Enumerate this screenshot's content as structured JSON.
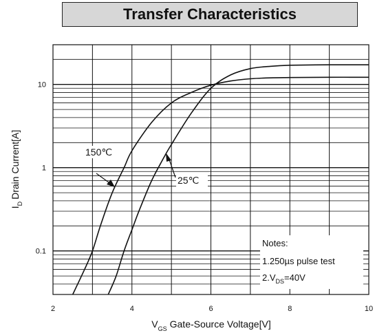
{
  "chart_data": {
    "type": "line",
    "title": "Transfer Characteristics",
    "xlabel": "Gate-Source Voltage[V]",
    "xlabel_symbol": "V",
    "xlabel_subscript": "GS",
    "ylabel": "Drain Current[A]",
    "ylabel_symbol": "I",
    "ylabel_subscript": "D",
    "x_scale": "linear",
    "y_scale": "log",
    "xlim": [
      2,
      10
    ],
    "ylim": [
      0.03,
      30
    ],
    "x_ticks": [
      2,
      4,
      6,
      8,
      10
    ],
    "x_tick_labels": [
      "2",
      "4",
      "6",
      "8",
      "10"
    ],
    "y_ticks": [
      0.1,
      1,
      10
    ],
    "y_tick_labels": [
      "0.1",
      "1",
      "10"
    ],
    "grid": true,
    "legend": "none",
    "series": [
      {
        "name": "150℃",
        "x": [
          2.5,
          2.8,
          3.0,
          3.2,
          3.5,
          3.8,
          4.0,
          4.5,
          5.0,
          5.5,
          6.0,
          6.5,
          7.0,
          7.5,
          8.0,
          9.0,
          10.0
        ],
        "y": [
          0.03,
          0.06,
          0.1,
          0.2,
          0.5,
          1.0,
          1.6,
          3.5,
          6.0,
          8.0,
          9.8,
          11.0,
          11.7,
          12.0,
          12.1,
          12.2,
          12.2
        ]
      },
      {
        "name": "25℃",
        "x": [
          3.4,
          3.6,
          3.8,
          4.0,
          4.2,
          4.5,
          4.8,
          5.0,
          5.5,
          6.0,
          6.5,
          7.0,
          7.5,
          8.0,
          9.0,
          10.0
        ],
        "y": [
          0.03,
          0.05,
          0.1,
          0.18,
          0.32,
          0.7,
          1.3,
          1.9,
          4.5,
          9.0,
          13.0,
          15.5,
          16.5,
          17.0,
          17.2,
          17.2
        ]
      }
    ],
    "annotations": [
      {
        "text": "150℃",
        "series": "150℃"
      },
      {
        "text": "25℃",
        "series": "25℃"
      }
    ],
    "notes": {
      "title": "Notes:",
      "line1": "1.250µs pulse test",
      "line2_prefix": "2.V",
      "line2_sub": "DS",
      "line2_suffix": "=40V"
    }
  }
}
